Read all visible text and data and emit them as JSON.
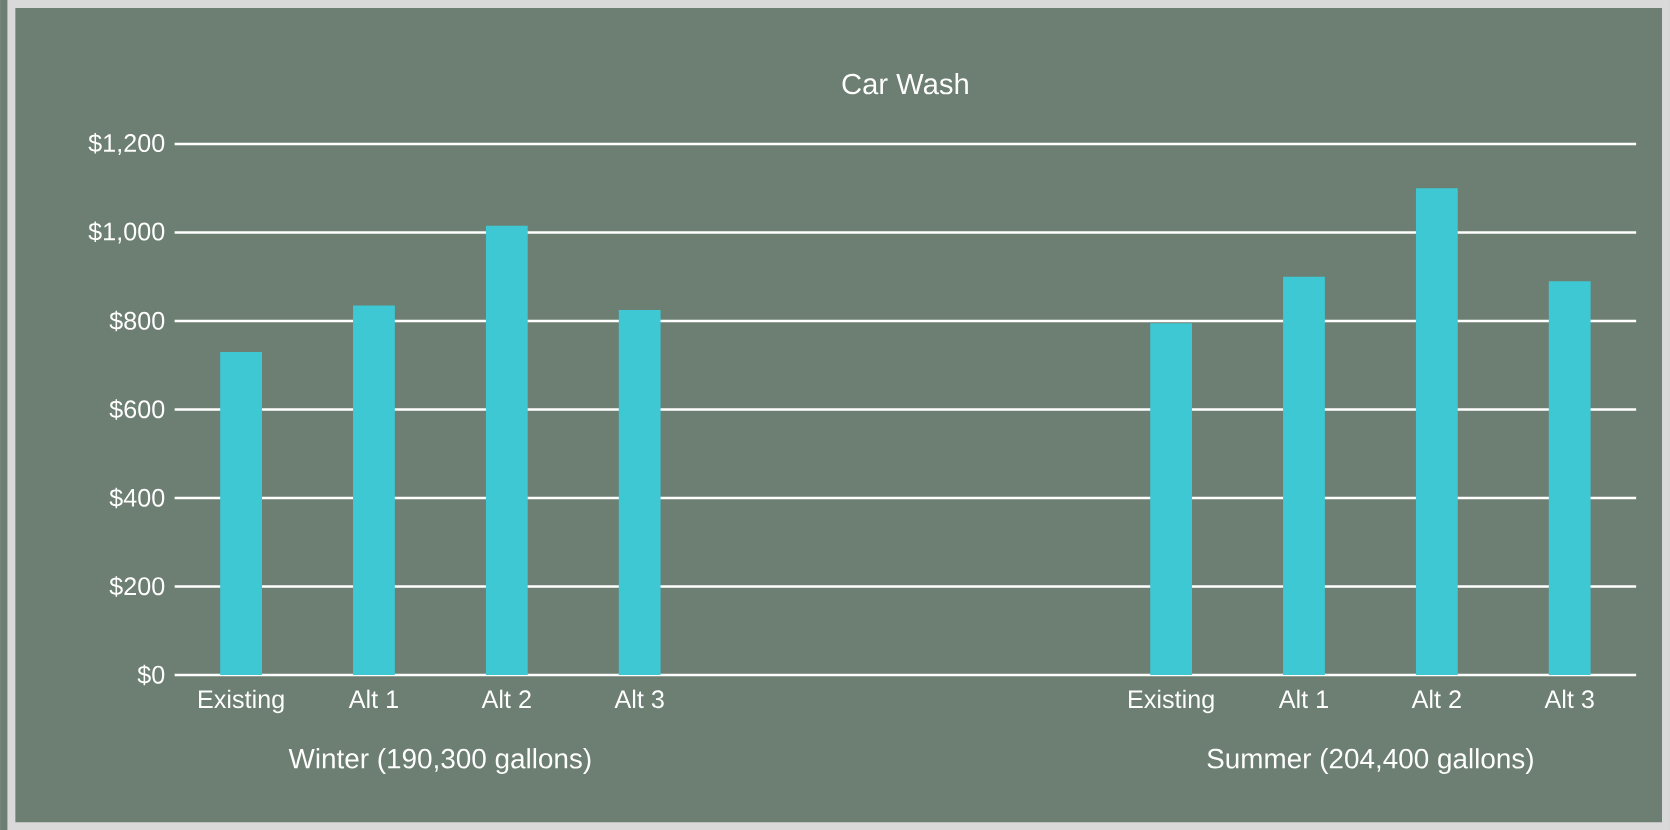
{
  "chart_data": {
    "type": "bar",
    "title": "Car Wash",
    "categories": [
      "Existing",
      "Alt 1",
      "Alt 2",
      "Alt 3",
      null,
      null,
      null,
      "Existing",
      "Alt 1",
      "Alt 2",
      "Alt 3"
    ],
    "values": [
      730,
      835,
      1015,
      825,
      null,
      null,
      null,
      795,
      900,
      1100,
      890
    ],
    "color": "#3ec8d4",
    "ylim": [
      0,
      1200
    ],
    "yticks": [
      {
        "value": 0,
        "label": "$0"
      },
      {
        "value": 200,
        "label": "$200"
      },
      {
        "value": 400,
        "label": "$400"
      },
      {
        "value": 600,
        "label": "$600"
      },
      {
        "value": 800,
        "label": "$800"
      },
      {
        "value": 1000,
        "label": "$1,000"
      },
      {
        "value": 1200,
        "label": "$1,200"
      }
    ],
    "grid": "y",
    "annotations": [
      "Winter (190,300 gallons)",
      "Summer (204,400 gallons)"
    ]
  }
}
